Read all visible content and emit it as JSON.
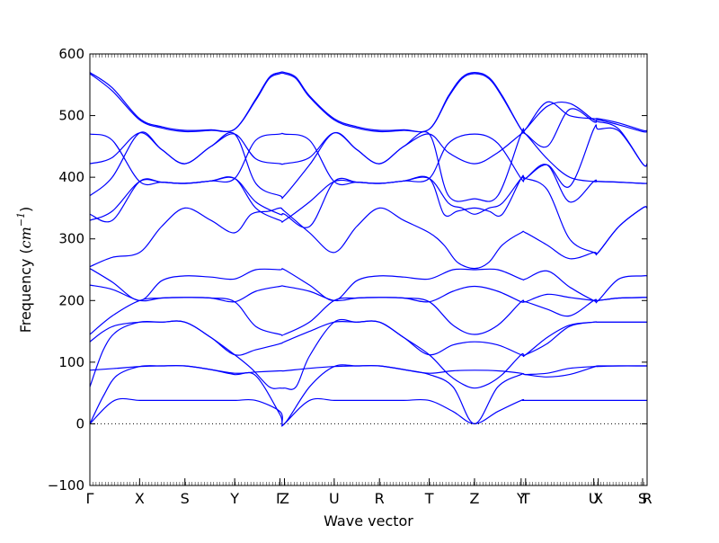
{
  "chart_data": {
    "type": "line",
    "xlabel": "Wave vector",
    "ylabel_prefix": "Frequency (",
    "ylabel_unit_base": "cm",
    "ylabel_unit_exp": "−1",
    "ylabel_suffix": ")",
    "ylim": [
      -100,
      600
    ],
    "yticks": [
      -100,
      0,
      100,
      200,
      300,
      400,
      500,
      600
    ],
    "xlim": [
      0,
      12.43
    ],
    "grid": false,
    "legend": "none",
    "zero_line": {
      "y": 0,
      "style": "dotted",
      "color": "#000000"
    },
    "series_color": "#0000ff",
    "kpoints": [
      {
        "label": "Γ",
        "x": 0
      },
      {
        "label": "X",
        "x": 1.11
      },
      {
        "label": "S",
        "x": 2.12
      },
      {
        "label": "Y",
        "x": 3.23
      },
      {
        "label": "Γ",
        "x": 4.24
      },
      {
        "label": "Z",
        "x": 4.34
      },
      {
        "label": "U",
        "x": 5.45
      },
      {
        "label": "R",
        "x": 6.46
      },
      {
        "label": "T",
        "x": 7.57
      },
      {
        "label": "Z",
        "x": 8.58
      },
      {
        "label": "Y",
        "x": 9.62
      },
      {
        "label": "T",
        "x": 9.72
      },
      {
        "label": "U",
        "x": 11.24
      },
      {
        "label": "X",
        "x": 11.34
      },
      {
        "label": "S",
        "x": 12.33
      },
      {
        "label": "R",
        "x": 12.43
      }
    ],
    "bands": [
      {
        "x": [
          0,
          0.55,
          1.11,
          1.6,
          2.12,
          2.7,
          3.23,
          3.7,
          4.24,
          4.29,
          4.34,
          4.9,
          5.45,
          5.95,
          6.46,
          7.0,
          7.57,
          8.1,
          8.58,
          9.1,
          9.62,
          9.67,
          9.72,
          10.5,
          11.24,
          11.29,
          11.34,
          11.8,
          12.33,
          12.38,
          12.43
        ],
        "y": [
          0,
          38,
          38,
          38,
          38,
          38,
          38,
          38,
          20,
          0,
          0,
          38,
          38,
          38,
          38,
          38,
          38,
          20,
          0,
          20,
          38,
          38,
          38,
          38,
          38,
          38,
          38,
          38,
          38,
          38,
          38
        ]
      },
      {
        "x": [
          0,
          0.3,
          0.6,
          1.11,
          1.6,
          2.12,
          2.7,
          3.23,
          3.7,
          4.24,
          4.34,
          4.9,
          5.45,
          5.95,
          6.46,
          7.0,
          7.57,
          8.1,
          8.58,
          9.1,
          9.62,
          9.72,
          10.2,
          10.7,
          11.24,
          11.34,
          11.8,
          12.33,
          12.43
        ],
        "y": [
          0,
          45,
          78,
          93,
          94,
          94,
          88,
          80,
          78,
          15,
          0,
          60,
          93,
          94,
          94,
          88,
          80,
          60,
          0,
          60,
          80,
          80,
          82,
          90,
          93,
          94,
          94,
          94,
          94
        ]
      },
      {
        "x": [
          0,
          0.6,
          1.11,
          1.6,
          2.12,
          2.7,
          3.23,
          3.7,
          4.24,
          4.34,
          4.9,
          5.45,
          5.95,
          6.46,
          7.0,
          7.57,
          8.1,
          8.58,
          9.1,
          9.62,
          9.72,
          10.2,
          10.7,
          11.24,
          11.34,
          11.8,
          12.33,
          12.43
        ],
        "y": [
          87,
          90,
          93,
          94,
          94,
          88,
          82,
          84,
          86,
          86,
          90,
          93,
          94,
          94,
          88,
          82,
          86,
          87,
          86,
          82,
          80,
          76,
          80,
          92,
          93,
          94,
          94,
          94
        ]
      },
      {
        "x": [
          0,
          0.3,
          0.6,
          1.11,
          1.6,
          2.12,
          2.7,
          3.23,
          3.7,
          4.24,
          4.34,
          4.9,
          5.45,
          5.95,
          6.46,
          7.0,
          7.57,
          8.1,
          8.58,
          9.1,
          9.62,
          9.72,
          10.2,
          10.7,
          11.24,
          11.34,
          11.8,
          12.33,
          12.43
        ],
        "y": [
          60,
          120,
          150,
          165,
          165,
          165,
          140,
          112,
          120,
          130,
          133,
          150,
          165,
          165,
          165,
          140,
          112,
          128,
          133,
          128,
          112,
          112,
          140,
          160,
          165,
          165,
          165,
          165,
          165
        ]
      },
      {
        "x": [
          0,
          0.3,
          0.6,
          1.11,
          1.6,
          2.12,
          2.7,
          3.23,
          3.6,
          4.0,
          4.24,
          4.34,
          4.6,
          4.9,
          5.45,
          5.95,
          6.46,
          7.0,
          7.57,
          8.0,
          8.3,
          8.58,
          8.9,
          9.2,
          9.62,
          9.72,
          10.2,
          10.7,
          11.24,
          11.34,
          11.8,
          12.33,
          12.43
        ],
        "y": [
          133,
          150,
          160,
          165,
          165,
          165,
          140,
          112,
          90,
          60,
          58,
          58,
          60,
          110,
          165,
          165,
          165,
          140,
          112,
          80,
          65,
          58,
          65,
          80,
          112,
          112,
          130,
          158,
          165,
          165,
          165,
          165,
          165
        ]
      },
      {
        "x": [
          0,
          0.5,
          1.11,
          1.6,
          2.12,
          2.7,
          3.23,
          3.7,
          4.24,
          4.34,
          4.9,
          5.45,
          5.95,
          6.46,
          7.0,
          7.57,
          8.1,
          8.58,
          9.1,
          9.62,
          9.72,
          10.2,
          10.7,
          11.24,
          11.34,
          11.8,
          12.33,
          12.43
        ],
        "y": [
          145,
          175,
          200,
          204,
          205,
          204,
          198,
          158,
          145,
          145,
          165,
          200,
          204,
          205,
          204,
          198,
          160,
          145,
          160,
          198,
          198,
          210,
          205,
          200,
          200,
          204,
          205,
          205
        ]
      },
      {
        "x": [
          0,
          0.5,
          1.11,
          1.6,
          2.12,
          2.7,
          3.23,
          3.7,
          4.24,
          4.34,
          4.9,
          5.45,
          5.95,
          6.46,
          7.0,
          7.57,
          8.1,
          8.58,
          9.1,
          9.62,
          9.72,
          10.2,
          10.7,
          11.24,
          11.34,
          11.8,
          12.33,
          12.43
        ],
        "y": [
          225,
          218,
          200,
          204,
          205,
          204,
          198,
          215,
          223,
          223,
          215,
          200,
          204,
          205,
          204,
          198,
          215,
          223,
          215,
          198,
          198,
          186,
          175,
          200,
          200,
          204,
          205,
          205
        ]
      },
      {
        "x": [
          0,
          0.5,
          1.11,
          1.6,
          2.12,
          2.7,
          3.23,
          3.7,
          4.24,
          4.34,
          4.9,
          5.45,
          5.95,
          6.46,
          7.0,
          7.57,
          8.1,
          8.58,
          9.1,
          9.62,
          9.72,
          10.2,
          10.7,
          11.24,
          11.34,
          11.8,
          12.33,
          12.43
        ],
        "y": [
          252,
          230,
          200,
          232,
          240,
          238,
          235,
          250,
          250,
          250,
          225,
          200,
          232,
          240,
          238,
          235,
          250,
          250,
          250,
          235,
          235,
          248,
          222,
          200,
          200,
          235,
          240,
          240
        ]
      },
      {
        "x": [
          0,
          0.5,
          1.11,
          1.6,
          2.12,
          2.7,
          3.23,
          3.6,
          4.0,
          4.24,
          4.34,
          4.9,
          5.45,
          5.95,
          6.46,
          7.0,
          7.57,
          7.9,
          8.2,
          8.58,
          8.9,
          9.2,
          9.62,
          9.72,
          10.2,
          10.7,
          11.24,
          11.34,
          11.8,
          12.33,
          12.43
        ],
        "y": [
          255,
          270,
          278,
          320,
          350,
          330,
          310,
          340,
          345,
          350,
          345,
          310,
          278,
          320,
          350,
          330,
          310,
          290,
          262,
          252,
          262,
          290,
          310,
          310,
          290,
          268,
          278,
          278,
          320,
          350,
          350
        ]
      },
      {
        "x": [
          0,
          0.5,
          1.11,
          1.6,
          2.12,
          2.7,
          3.23,
          3.7,
          4.24,
          4.34,
          4.9,
          5.45,
          5.95,
          6.46,
          7.0,
          7.57,
          7.9,
          8.2,
          8.58,
          8.9,
          9.2,
          9.62,
          9.72,
          10.2,
          10.7,
          11.24,
          11.34,
          11.8,
          12.33,
          12.43
        ],
        "y": [
          330,
          345,
          393,
          392,
          390,
          394,
          398,
          350,
          330,
          330,
          360,
          393,
          392,
          390,
          394,
          398,
          340,
          345,
          350,
          345,
          340,
          398,
          398,
          380,
          300,
          278,
          278,
          320,
          350,
          350
        ]
      },
      {
        "x": [
          0,
          0.5,
          1.11,
          1.6,
          2.12,
          2.7,
          3.23,
          3.7,
          4.24,
          4.34,
          4.9,
          5.45,
          5.95,
          6.46,
          7.0,
          7.57,
          8.0,
          8.3,
          8.58,
          8.9,
          9.2,
          9.62,
          9.72,
          10.2,
          10.7,
          11.24,
          11.34,
          11.8,
          12.33,
          12.43
        ],
        "y": [
          340,
          330,
          393,
          392,
          390,
          394,
          398,
          360,
          340,
          340,
          320,
          393,
          392,
          390,
          394,
          398,
          358,
          350,
          340,
          350,
          358,
          398,
          398,
          420,
          360,
          393,
          393,
          392,
          390,
          390
        ]
      },
      {
        "x": [
          0,
          0.5,
          1.11,
          1.6,
          2.12,
          2.7,
          3.23,
          3.7,
          4.24,
          4.34,
          4.9,
          5.45,
          5.95,
          6.46,
          7.0,
          7.57,
          8.0,
          8.58,
          9.1,
          9.62,
          9.72,
          10.2,
          10.7,
          11.24,
          11.34,
          11.8,
          12.33,
          12.43
        ],
        "y": [
          370,
          400,
          472,
          445,
          422,
          450,
          470,
          390,
          370,
          370,
          420,
          472,
          445,
          422,
          450,
          470,
          370,
          365,
          370,
          470,
          470,
          430,
          400,
          393,
          393,
          392,
          390,
          390
        ]
      },
      {
        "x": [
          0,
          0.5,
          1.11,
          1.6,
          2.12,
          2.7,
          3.23,
          3.7,
          4.24,
          4.34,
          4.9,
          5.45,
          5.95,
          6.46,
          7.0,
          7.57,
          8.0,
          8.58,
          9.1,
          9.62,
          9.72,
          10.2,
          10.7,
          11.24,
          11.34,
          11.8,
          12.33,
          12.43
        ],
        "y": [
          422,
          432,
          472,
          445,
          422,
          450,
          470,
          430,
          422,
          422,
          432,
          472,
          445,
          422,
          450,
          470,
          440,
          422,
          440,
          470,
          470,
          450,
          510,
          490,
          490,
          478,
          422,
          422
        ]
      },
      {
        "x": [
          0,
          0.5,
          1.11,
          1.6,
          2.12,
          2.7,
          3.23,
          3.7,
          4.24,
          4.34,
          4.9,
          5.45,
          5.95,
          6.46,
          7.0,
          7.57,
          8.0,
          8.58,
          9.1,
          9.62,
          9.72,
          10.2,
          10.7,
          11.24,
          11.34,
          11.8,
          12.33,
          12.43
        ],
        "y": [
          470,
          460,
          393,
          392,
          390,
          394,
          398,
          460,
          470,
          470,
          460,
          393,
          392,
          390,
          394,
          398,
          455,
          470,
          455,
          398,
          398,
          420,
          385,
          478,
          478,
          475,
          422,
          422
        ]
      },
      {
        "x": [
          0,
          0.5,
          1.11,
          1.6,
          2.12,
          2.7,
          3.23,
          3.7,
          4.0,
          4.24,
          4.34,
          4.6,
          4.9,
          5.45,
          5.95,
          6.46,
          7.0,
          7.57,
          8.0,
          8.3,
          8.58,
          8.9,
          9.2,
          9.62,
          9.72,
          10.2,
          10.7,
          11.24,
          11.34,
          11.8,
          12.33,
          12.43
        ],
        "y": [
          568,
          540,
          493,
          480,
          474,
          476,
          478,
          525,
          560,
          568,
          568,
          560,
          530,
          493,
          480,
          474,
          476,
          478,
          530,
          560,
          568,
          560,
          530,
          478,
          478,
          515,
          520,
          493,
          493,
          485,
          474,
          474
        ]
      },
      {
        "x": [
          0,
          0.5,
          1.11,
          1.6,
          2.12,
          2.7,
          3.23,
          3.7,
          4.0,
          4.24,
          4.34,
          4.6,
          4.9,
          5.45,
          5.95,
          6.46,
          7.0,
          7.57,
          8.0,
          8.3,
          8.58,
          8.9,
          9.2,
          9.62,
          9.72,
          10.2,
          10.7,
          11.24,
          11.34,
          11.8,
          12.33,
          12.43
        ],
        "y": [
          570,
          545,
          495,
          482,
          476,
          477,
          478,
          527,
          562,
          570,
          570,
          562,
          532,
          495,
          482,
          476,
          477,
          478,
          532,
          562,
          570,
          562,
          532,
          478,
          478,
          522,
          500,
          495,
          495,
          488,
          476,
          476
        ]
      }
    ]
  }
}
